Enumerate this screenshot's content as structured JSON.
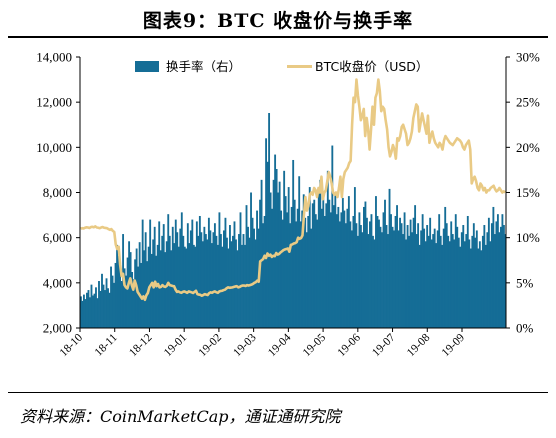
{
  "figure": {
    "title": "图表9：BTC 收盘价与换手率",
    "source": "资料来源：CoinMarketCap，通证通研究院"
  },
  "colors": {
    "turnover_bar": "#156d96",
    "price_line": "#e9ca85",
    "axis": "#000000",
    "background": "#ffffff"
  },
  "chart_data": {
    "type": "bar+line",
    "x_tick_labels": [
      "18-10",
      "18-11",
      "18-12",
      "19-01",
      "19-02",
      "19-03",
      "19-04",
      "19-05",
      "19-06",
      "19-07",
      "19-08",
      "19-09"
    ],
    "y_left": {
      "ticks": [
        "2,000",
        "4,000",
        "6,000",
        "8,000",
        "10,000",
        "12,000",
        "14,000"
      ],
      "range": [
        2000,
        14000
      ]
    },
    "y_right": {
      "ticks": [
        "0%",
        "5%",
        "10%",
        "15%",
        "20%",
        "25%",
        "30%"
      ],
      "range": [
        0,
        30
      ]
    },
    "legend": {
      "position": "top",
      "entries": [
        "换手率（右）",
        "BTC收盘价（USD）"
      ]
    },
    "series": [
      {
        "name": "换手率（右）",
        "type": "bar",
        "axis": "right",
        "unit": "%",
        "values": [
          3.5,
          3.0,
          3.7,
          3.2,
          3.9,
          4.2,
          3.4,
          4.8,
          3.6,
          3.8,
          4.5,
          3.3,
          5.2,
          4.1,
          6.0,
          4.8,
          4.2,
          5.5,
          4.4,
          3.9,
          6.8,
          5.8,
          5.0,
          7.2,
          9.2,
          8.0,
          6.4,
          5.2,
          10.4,
          6.6,
          5.8,
          7.8,
          9.6,
          8.4,
          6.2,
          5.4,
          7.6,
          8.8,
          6.8,
          9.5,
          7.2,
          12.0,
          8.6,
          10.6,
          7.4,
          9.0,
          12.0,
          8.2,
          9.8,
          11.2,
          8.0,
          9.2,
          11.8,
          8.6,
          10.2,
          11.5,
          8.4,
          9.6,
          12.6,
          10.2,
          8.6,
          11.2,
          9.4,
          12.0,
          10.6,
          9.0,
          11.0,
          12.8,
          10.2,
          9.0,
          8.8,
          11.6,
          9.4,
          10.8,
          12.0,
          9.2,
          9.0,
          11.8,
          10.2,
          12.4,
          10.6,
          9.6,
          11.2,
          10.4,
          9.8,
          12.2,
          10.8,
          9.4,
          10.6,
          11.6,
          10.2,
          9.2,
          12.8,
          10.4,
          9.0,
          10.8,
          12.2,
          10.0,
          8.8,
          11.4,
          9.6,
          10.2,
          11.8,
          9.8,
          8.6,
          10.4,
          12.8,
          9.2,
          10.4,
          9.2,
          13.6,
          11.2,
          10.0,
          15.0,
          12.2,
          11.0,
          9.8,
          13.0,
          11.0,
          14.2,
          16.4,
          11.6,
          12.4,
          21.0,
          18.4,
          23.8,
          15.0,
          13.2,
          16.4,
          19.2,
          17.6,
          15.0,
          16.2,
          13.0,
          12.0,
          17.4,
          14.6,
          12.8,
          15.6,
          11.6,
          13.4,
          18.6,
          14.2,
          11.8,
          13.2,
          16.8,
          11.8,
          13.0,
          14.8,
          12.2,
          10.6,
          12.4,
          15.6,
          11.0,
          13.8,
          14.2,
          12.6,
          12.0,
          15.2,
          16.4,
          13.2,
          14.6,
          12.4,
          13.8,
          17.4,
          14.2,
          12.8,
          20.2,
          13.6,
          14.8,
          12.6,
          13.4,
          11.8,
          12.8,
          14.4,
          13.0,
          11.6,
          13.2,
          14.6,
          11.8,
          10.8,
          12.4,
          15.6,
          11.6,
          10.2,
          12.8,
          11.4,
          10.6,
          13.4,
          14.0,
          12.2,
          10.4,
          11.8,
          12.6,
          10.2,
          9.8,
          14.6,
          12.4,
          12.0,
          11.2,
          10.6,
          12.8,
          14.2,
          11.4,
          10.4,
          15.4,
          12.6,
          11.2,
          10.8,
          12.4,
          13.6,
          10.8,
          12.2,
          11.6,
          10.4,
          12.8,
          9.8,
          11.4,
          10.2,
          12.0,
          10.6,
          12.2,
          13.6,
          10.4,
          11.6,
          9.2,
          10.8,
          12.6,
          11.0,
          9.6,
          11.4,
          10.2,
          12.2,
          9.8,
          10.4,
          11.0,
          9.4,
          10.8,
          12.6,
          10.2,
          9.2,
          11.0,
          13.4,
          11.6,
          10.2,
          9.6,
          11.8,
          10.4,
          9.8,
          12.6,
          11.2,
          10.0,
          9.0,
          10.6,
          11.4,
          9.6,
          10.4,
          12.4,
          9.8,
          8.8,
          10.2,
          11.6,
          10.0,
          10.8,
          8.8,
          9.6,
          8.6,
          10.2,
          11.4,
          9.2,
          10.6,
          12.2,
          9.6,
          11.6,
          13.4,
          10.4,
          11.8,
          12.6,
          10.6,
          11.2,
          12.6,
          11.4,
          10.4
        ]
      },
      {
        "name": "BTC收盘价（USD）",
        "type": "line",
        "axis": "left",
        "unit": "USD",
        "values": [
          6400,
          6420,
          6410,
          6440,
          6460,
          6450,
          6430,
          6470,
          6480,
          6460,
          6500,
          6450,
          6440,
          6420,
          6450,
          6470,
          6440,
          6430,
          6420,
          6380,
          6350,
          6380,
          6300,
          6250,
          5700,
          5500,
          5600,
          4800,
          4300,
          4400,
          3900,
          3800,
          3750,
          4000,
          4200,
          3900,
          3700,
          4100,
          3900,
          3600,
          3500,
          3400,
          3300,
          3400,
          3250,
          3450,
          3550,
          3800,
          3900,
          4000,
          3800,
          4050,
          3850,
          3950,
          3800,
          3820,
          3900,
          3840,
          3820,
          3870,
          4000,
          3900,
          3880,
          3860,
          3850,
          3700,
          3600,
          3620,
          3580,
          3560,
          3600,
          3620,
          3590,
          3560,
          3620,
          3600,
          3580,
          3550,
          3600,
          3650,
          3500,
          3480,
          3470,
          3430,
          3460,
          3500,
          3480,
          3460,
          3540,
          3580,
          3560,
          3600,
          3620,
          3580,
          3560,
          3620,
          3640,
          3650,
          3680,
          3700,
          3760,
          3800,
          3780,
          3790,
          3800,
          3820,
          3840,
          3850,
          3800,
          3820,
          3860,
          3880,
          3880,
          3860,
          3900,
          3880,
          3900,
          3920,
          3950,
          4000,
          4030,
          4100,
          4050,
          4950,
          5000,
          5050,
          5200,
          5100,
          5300,
          5200,
          5250,
          5150,
          5200,
          5180,
          5320,
          5250,
          5280,
          5350,
          5400,
          5450,
          5480,
          5500,
          5520,
          5380,
          5680,
          5700,
          5740,
          5760,
          5800,
          6000,
          5950,
          5980,
          6100,
          7000,
          7800,
          7200,
          7400,
          7900,
          8000,
          7900,
          8200,
          8100,
          7800,
          8200,
          8000,
          8700,
          7700,
          8000,
          8100,
          8500,
          8900,
          8700,
          8400,
          8000,
          7900,
          8000,
          7800,
          8200,
          8700,
          7800,
          8600,
          8900,
          9000,
          9100,
          9300,
          9400,
          11000,
          12200,
          12000,
          13000,
          12300,
          11800,
          11200,
          11400,
          11700,
          10500,
          11300,
          10800,
          9900,
          10800,
          11800,
          11000,
          12200,
          12400,
          13000,
          12500,
          11600,
          11800,
          11700,
          11200,
          10800,
          10000,
          9600,
          9800,
          10100,
          9900,
          9500,
          10400,
          10300,
          10500,
          10900,
          11000,
          10800,
          10600,
          10100,
          10200,
          10400,
          10700,
          11300,
          11600,
          11900,
          11800,
          10700,
          11100,
          11500,
          11200,
          10900,
          10600,
          11400,
          10200,
          10500,
          10700,
          10400,
          10200,
          10100,
          10000,
          10200,
          10100,
          9900,
          10300,
          10500,
          10400,
          10300,
          10200,
          10150,
          10100,
          10200,
          10300,
          10400,
          10350,
          10300,
          10200,
          10000,
          9900,
          10100,
          10200,
          10300,
          9900,
          8400,
          8600,
          8700,
          8500,
          8200,
          8100,
          8400,
          8300,
          8100,
          8200,
          8000,
          8100,
          8100,
          8200,
          8250,
          8300,
          8150,
          8050,
          8100,
          8200,
          8100,
          8000,
          8050,
          8000
        ]
      }
    ]
  }
}
